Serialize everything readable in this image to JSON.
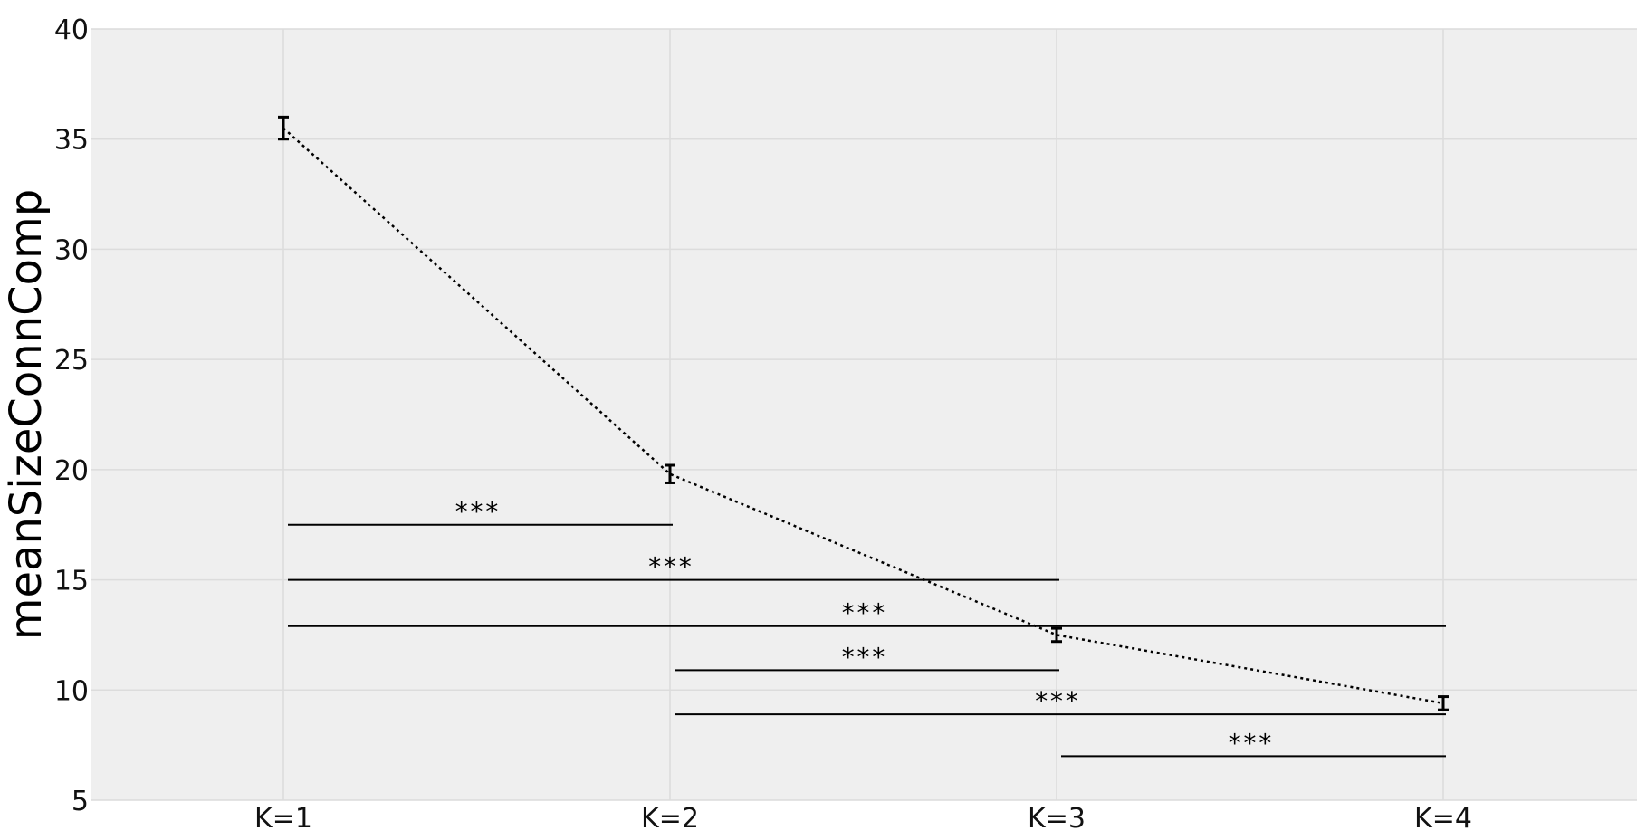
{
  "chart_data": {
    "type": "line",
    "title": "",
    "xlabel": "",
    "ylabel": "meanSizeConnComp",
    "categories": [
      "K=1",
      "K=2",
      "K=3",
      "K=4"
    ],
    "ylim": [
      5,
      40
    ],
    "yticks": [
      5,
      10,
      15,
      20,
      25,
      30,
      35,
      40
    ],
    "grid": true,
    "line_style": "dotted",
    "series": [
      {
        "values": [
          35.5,
          19.8,
          12.5,
          9.4
        ],
        "errors": [
          0.5,
          0.4,
          0.3,
          0.3
        ]
      }
    ],
    "significance": [
      {
        "from": "K=1",
        "to": "K=2",
        "y": 17.5,
        "label": "***"
      },
      {
        "from": "K=1",
        "to": "K=3",
        "y": 15.0,
        "label": "***"
      },
      {
        "from": "K=1",
        "to": "K=4",
        "y": 12.9,
        "label": "***"
      },
      {
        "from": "K=2",
        "to": "K=3",
        "y": 10.9,
        "label": "***"
      },
      {
        "from": "K=2",
        "to": "K=4",
        "y": 8.9,
        "label": "***"
      },
      {
        "from": "K=3",
        "to": "K=4",
        "y": 7.0,
        "label": "***"
      }
    ]
  }
}
